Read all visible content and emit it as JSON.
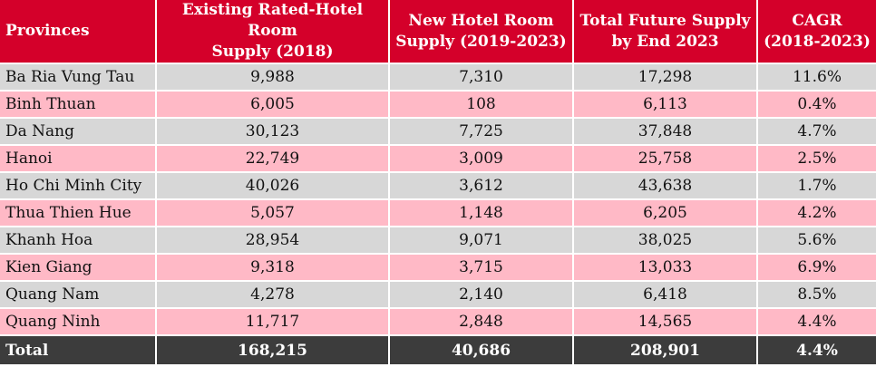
{
  "headers": [
    "Provinces",
    "Existing Rated-Hotel Room Supply (2018)",
    "New Hotel Room Supply (2019-2023)",
    "Total Future Supply by End 2023",
    "CAGR (2018-2023)"
  ],
  "header_lines": [
    [
      "Provinces"
    ],
    [
      "Existing Rated-Hotel Room",
      "Supply (2018)"
    ],
    [
      "New Hotel Room",
      "Supply (2019-2023)"
    ],
    [
      "Total Future Supply",
      "by End 2023"
    ],
    [
      "CAGR",
      "(2018-2023)"
    ]
  ],
  "rows": [
    [
      "Ba Ria Vung Tau",
      "9,988",
      "7,310",
      "17,298",
      "11.6%"
    ],
    [
      "Binh Thuan",
      "6,005",
      "108",
      "6,113",
      "0.4%"
    ],
    [
      "Da Nang",
      "30,123",
      "7,725",
      "37,848",
      "4.7%"
    ],
    [
      "Hanoi",
      "22,749",
      "3,009",
      "25,758",
      "2.5%"
    ],
    [
      "Ho Chi Minh City",
      "40,026",
      "3,612",
      "43,638",
      "1.7%"
    ],
    [
      "Thua Thien Hue",
      "5,057",
      "1,148",
      "6,205",
      "4.2%"
    ],
    [
      "Khanh Hoa",
      "28,954",
      "9,071",
      "38,025",
      "5.6%"
    ],
    [
      "Kien Giang",
      "9,318",
      "3,715",
      "13,033",
      "6.9%"
    ],
    [
      "Quang Nam",
      "4,278",
      "2,140",
      "6,418",
      "8.5%"
    ],
    [
      "Quang Ninh",
      "11,717",
      "2,848",
      "14,565",
      "4.4%"
    ]
  ],
  "total": [
    "Total",
    "168,215",
    "40,686",
    "208,901",
    "4.4%"
  ],
  "colors": {
    "header_bg": "#d4002a",
    "row_odd_bg": "#d7d7d7",
    "row_even_bg": "#ffb9c6",
    "total_bg": "#3c3c3c",
    "header_text": "#ffffff"
  }
}
